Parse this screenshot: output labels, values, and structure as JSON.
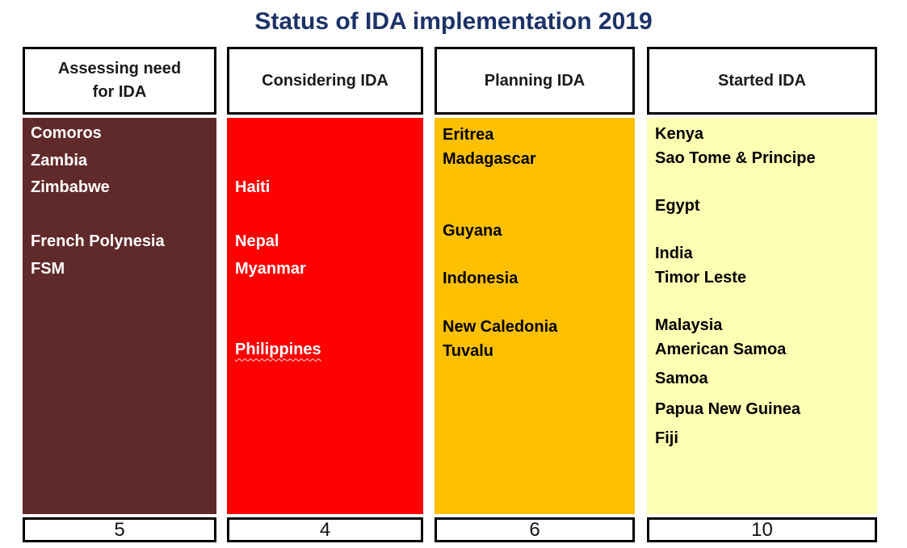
{
  "title": "Status of IDA implementation 2019",
  "title_color": "#1C3268",
  "border_color": "#000000",
  "columns": [
    {
      "header": "Assessing need for IDA",
      "count": "5",
      "fill_color": "#612A2A",
      "text_color": "#FFFFFF",
      "items": [
        "Comoros",
        "Zambia",
        "Zimbabwe",
        "",
        "French Polynesia",
        "FSM"
      ]
    },
    {
      "header": "Considering IDA",
      "count": "4",
      "fill_color": "#FF0000",
      "text_color": "#FFFFFF",
      "items": [
        "",
        "",
        "Haiti",
        "",
        "Nepal",
        "Myanmar",
        "",
        "",
        "Philippines"
      ]
    },
    {
      "header": "Planning IDA",
      "count": "6",
      "fill_color": "#FFC000",
      "text_color": "#000000",
      "items": [
        "Eritrea",
        "Madagascar",
        "",
        "",
        "Guyana",
        "",
        "Indonesia",
        "",
        "New Caledonia",
        "Tuvalu"
      ]
    },
    {
      "header": "Started IDA",
      "count": "10",
      "fill_color": "#FFFFB3",
      "text_color": "#000000",
      "items": [
        "Kenya",
        "Sao Tome & Principe",
        "",
        "Egypt",
        "",
        "India",
        "Timor Leste",
        "",
        "Malaysia",
        "American Samoa",
        "Samoa",
        "Papua New Guinea",
        "Fiji"
      ]
    }
  ]
}
